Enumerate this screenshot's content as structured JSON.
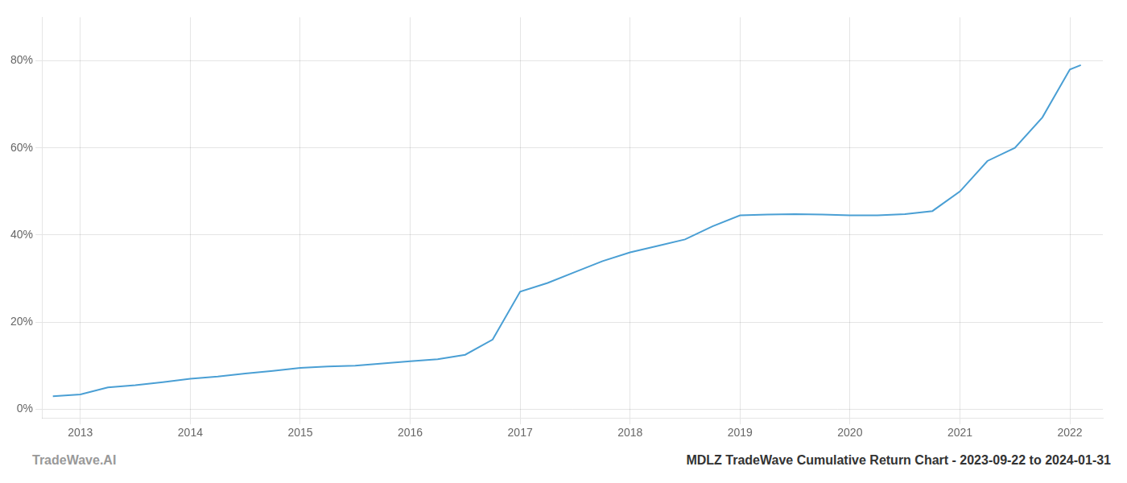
{
  "chart_data": {
    "type": "line",
    "title": "MDLZ TradeWave Cumulative Return Chart - 2023-09-22 to 2024-01-31",
    "annotations": [
      "TradeWave.AI"
    ],
    "x": [
      2012.75,
      2013.0,
      2013.25,
      2013.5,
      2013.75,
      2014.0,
      2014.25,
      2014.5,
      2014.75,
      2015.0,
      2015.25,
      2015.5,
      2015.75,
      2016.0,
      2016.25,
      2016.5,
      2016.75,
      2017.0,
      2017.25,
      2017.5,
      2017.75,
      2018.0,
      2018.25,
      2018.5,
      2018.75,
      2019.0,
      2019.25,
      2019.5,
      2019.75,
      2020.0,
      2020.25,
      2020.5,
      2020.75,
      2021.0,
      2021.25,
      2021.5,
      2021.75,
      2022.0,
      2022.1
    ],
    "values": [
      0.03,
      0.034,
      0.05,
      0.055,
      0.062,
      0.07,
      0.075,
      0.082,
      0.088,
      0.095,
      0.098,
      0.1,
      0.105,
      0.11,
      0.115,
      0.125,
      0.16,
      0.27,
      0.29,
      0.315,
      0.34,
      0.36,
      0.375,
      0.39,
      0.42,
      0.445,
      0.447,
      0.448,
      0.447,
      0.445,
      0.445,
      0.448,
      0.455,
      0.5,
      0.57,
      0.6,
      0.67,
      0.78,
      0.79
    ],
    "color": "#4a9fd4",
    "xlim": [
      2012.65,
      2022.3
    ],
    "ylim": [
      -0.02,
      0.9
    ],
    "xticks": [
      2013,
      2014,
      2015,
      2016,
      2017,
      2018,
      2019,
      2020,
      2021,
      2022
    ],
    "yticks": [
      {
        "value": 0.0,
        "label": "0%"
      },
      {
        "value": 0.2,
        "label": "20%"
      },
      {
        "value": 0.4,
        "label": "40%"
      },
      {
        "value": 0.6,
        "label": "60%"
      },
      {
        "value": 0.8,
        "label": "80%"
      }
    ],
    "grid": true
  }
}
